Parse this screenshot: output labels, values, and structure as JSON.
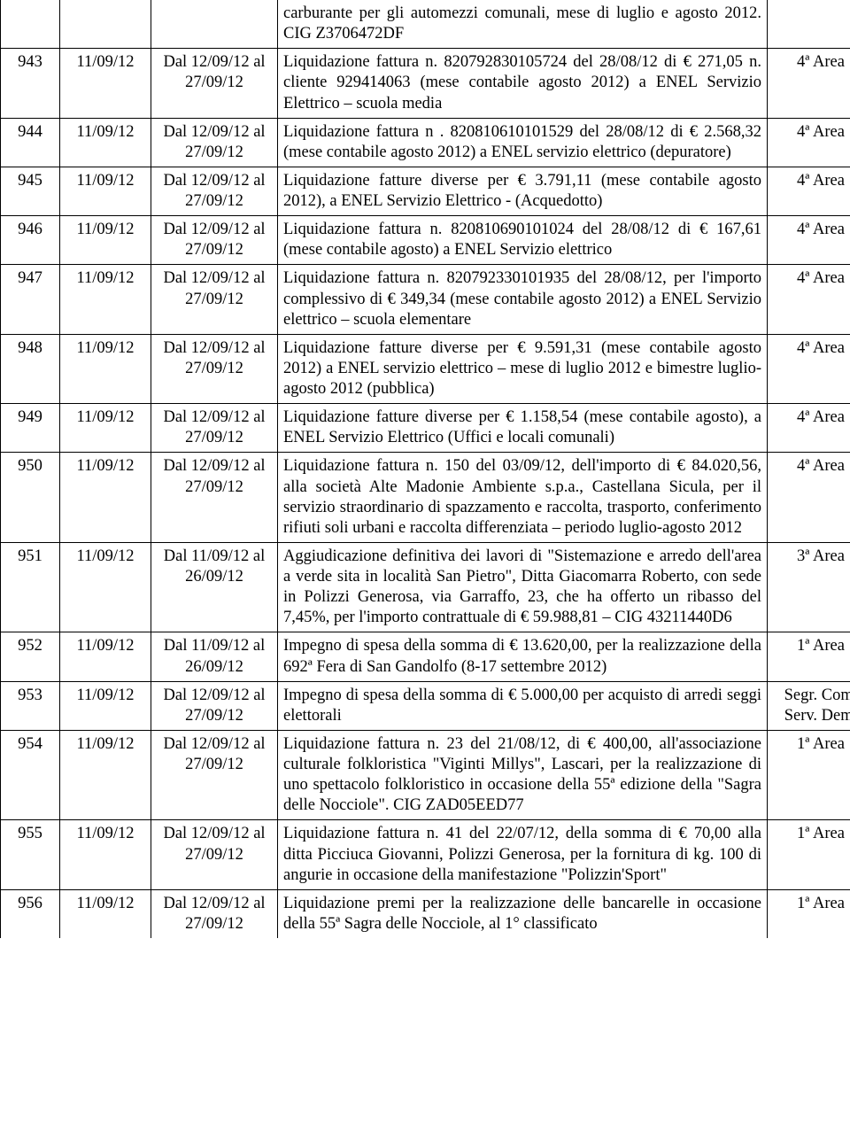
{
  "rows": [
    {
      "num": "",
      "date": "",
      "period": "",
      "desc": "carburante per gli automezzi comunali, mese di luglio e agosto 2012. CIG Z3706472DF",
      "area": "",
      "first": true
    },
    {
      "num": "943",
      "date": "11/09/12",
      "period": "Dal 12/09/12 al 27/09/12",
      "desc": "Liquidazione fattura n. 820792830105724 del 28/08/12 di € 271,05 n. cliente 929414063 (mese contabile agosto 2012) a ENEL Servizio Elettrico – scuola media",
      "area": "4ª Area"
    },
    {
      "num": "944",
      "date": "11/09/12",
      "period": "Dal 12/09/12 al 27/09/12",
      "desc": "Liquidazione fattura n . 820810610101529 del 28/08/12 di € 2.568,32 (mese contabile agosto 2012) a ENEL servizio elettrico (depuratore)",
      "area": "4ª Area"
    },
    {
      "num": "945",
      "date": "11/09/12",
      "period": "Dal 12/09/12 al 27/09/12",
      "desc": "Liquidazione fatture diverse per € 3.791,11 (mese contabile agosto 2012), a ENEL Servizio Elettrico - (Acquedotto)",
      "area": "4ª Area"
    },
    {
      "num": "946",
      "date": "11/09/12",
      "period": "Dal 12/09/12 al 27/09/12",
      "desc": "Liquidazione fattura n. 820810690101024 del 28/08/12 di € 167,61 (mese contabile agosto) a ENEL Servizio elettrico",
      "area": "4ª Area"
    },
    {
      "num": "947",
      "date": "11/09/12",
      "period": "Dal 12/09/12 al 27/09/12",
      "desc": "Liquidazione fattura n. 820792330101935 del 28/08/12, per l'importo complessivo di € 349,34 (mese contabile agosto 2012) a ENEL Servizio elettrico – scuola elementare",
      "area": "4ª Area"
    },
    {
      "num": "948",
      "date": "11/09/12",
      "period": "Dal 12/09/12 al 27/09/12",
      "desc": "Liquidazione fatture diverse per € 9.591,31 (mese contabile agosto 2012) a ENEL servizio elettrico – mese di luglio 2012 e bimestre luglio-agosto 2012 (pubblica)",
      "area": "4ª Area"
    },
    {
      "num": "949",
      "date": "11/09/12",
      "period": "Dal 12/09/12 al 27/09/12",
      "desc": "Liquidazione fatture diverse per € 1.158,54 (mese contabile agosto), a ENEL Servizio Elettrico (Uffici e locali comunali)",
      "area": "4ª Area"
    },
    {
      "num": "950",
      "date": "11/09/12",
      "period": "Dal 12/09/12 al 27/09/12",
      "desc": "Liquidazione fattura n. 150 del 03/09/12, dell'importo di € 84.020,56, alla società Alte Madonie Ambiente s.p.a., Castellana Sicula, per il servizio straordinario di spazzamento e raccolta, trasporto, conferimento rifiuti soli urbani e raccolta differenziata – periodo luglio-agosto 2012",
      "area": "4ª Area"
    },
    {
      "num": "951",
      "date": "11/09/12",
      "period": "Dal 11/09/12 al 26/09/12",
      "desc": "Aggiudicazione definitiva dei lavori di \"Sistemazione e arredo dell'area a verde sita in località San Pietro\", Ditta Giacomarra Roberto, con sede in Polizzi Generosa, via Garraffo, 23, che ha offerto un ribasso del 7,45%, per l'importo contrattuale di  € 59.988,81 – CIG 43211440D6",
      "area": "3ª Area"
    },
    {
      "num": "952",
      "date": "11/09/12",
      "period": "Dal 11/09/12 al 26/09/12",
      "desc": "Impegno di spesa della somma di € 13.620,00, per la realizzazione della 692ª Fera di San Gandolfo (8-17 settembre 2012)",
      "area": "1ª Area"
    },
    {
      "num": "953",
      "date": "11/09/12",
      "period": "Dal 12/09/12 al 27/09/12",
      "desc": "Impegno di spesa della somma di € 5.000,00 per acquisto di arredi seggi elettorali",
      "area": "Segr. Com. Serv. Dem."
    },
    {
      "num": "954",
      "date": "11/09/12",
      "period": "Dal 12/09/12 al 27/09/12",
      "desc": "Liquidazione fattura n. 23 del 21/08/12, di € 400,00, all'associazione culturale folkloristica \"Viginti Millys\", Lascari, per la realizzazione di uno spettacolo folkloristico in occasione della 55ª edizione della \"Sagra delle Nocciole\". CIG ZAD05EED77",
      "area": "1ª Area"
    },
    {
      "num": "955",
      "date": "11/09/12",
      "period": "Dal 12/09/12 al 27/09/12",
      "desc": "Liquidazione fattura n. 41 del 22/07/12, della somma  di € 70,00 alla ditta Picciuca Giovanni, Polizzi Generosa, per la fornitura di kg. 100 di angurie in occasione della manifestazione \"Polizzin'Sport\"",
      "area": "1ª Area"
    },
    {
      "num": "956",
      "date": "11/09/12",
      "period": "Dal 12/09/12 al 27/09/12",
      "desc": "Liquidazione premi per la realizzazione delle bancarelle in occasione della 55ª Sagra delle Nocciole, al 1° classificato",
      "area": "1ª Area",
      "last": true
    }
  ]
}
